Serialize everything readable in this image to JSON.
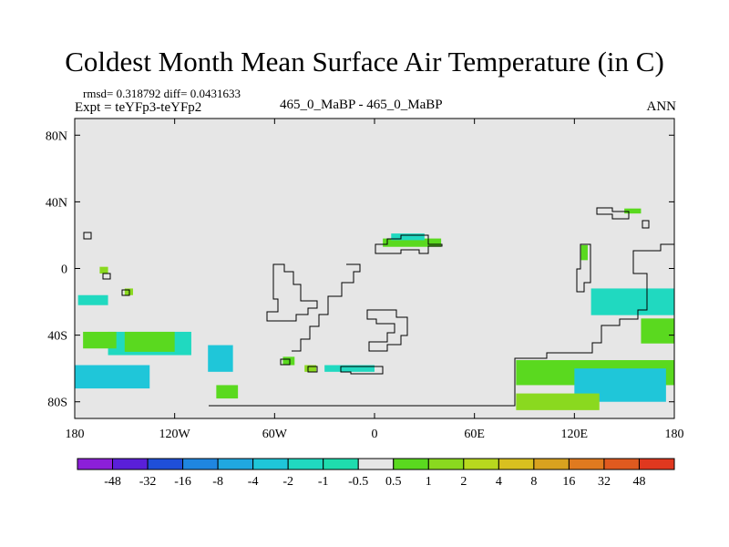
{
  "title": "Coldest Month Mean Surface Air Temperature (in C)",
  "subtitle_left_1": "rmsd= 0.318792 diff= 0.0431633",
  "subtitle_left_2": "Expt = teYFp3-teYFp2",
  "subtitle_center": "465_0_MaBP - 465_0_MaBP",
  "subtitle_right": "ANN",
  "chart_data": {
    "type": "heatmap",
    "projection": "cylindrical-equidistant",
    "xlim": [
      -180,
      180
    ],
    "ylim": [
      -90,
      90
    ],
    "x_ticks": [
      {
        "value": -180,
        "label": "180"
      },
      {
        "value": -120,
        "label": "120W"
      },
      {
        "value": -60,
        "label": "60W"
      },
      {
        "value": 0,
        "label": "0"
      },
      {
        "value": 60,
        "label": "60E"
      },
      {
        "value": 120,
        "label": "120E"
      },
      {
        "value": 180,
        "label": "180"
      }
    ],
    "y_ticks": [
      {
        "value": 80,
        "label": "80N"
      },
      {
        "value": 40,
        "label": "40N"
      },
      {
        "value": 0,
        "label": "0"
      },
      {
        "value": -40,
        "label": "40S"
      },
      {
        "value": -80,
        "label": "80S"
      }
    ],
    "background_color": "#e6e6e6",
    "colorbar": {
      "levels": [
        "-48",
        "-32",
        "-16",
        "-8",
        "-4",
        "-2",
        "-1",
        "-0.5",
        "0.5",
        "1",
        "2",
        "4",
        "8",
        "16",
        "32",
        "48"
      ],
      "colors": [
        "#8c1fd9",
        "#5a1fd9",
        "#1f4fd9",
        "#1f86e0",
        "#20a8e0",
        "#1fc6d9",
        "#20d9c0",
        "#1fdcae",
        "#e6e6e6",
        "#5ad91f",
        "#8ad91f",
        "#b8d81e",
        "#d9c01f",
        "#d9a21f",
        "#e07a1f",
        "#e05a1f",
        "#e0381f"
      ]
    },
    "regions": [
      {
        "value": -2,
        "lon": [
          -180,
          -135
        ],
        "lat": [
          -72,
          -58
        ]
      },
      {
        "value": -1,
        "lon": [
          -160,
          -110
        ],
        "lat": [
          -52,
          -38
        ]
      },
      {
        "value": 1,
        "lon": [
          -150,
          -120
        ],
        "lat": [
          -50,
          -38
        ]
      },
      {
        "value": -2,
        "lon": [
          -100,
          -85
        ],
        "lat": [
          -62,
          -46
        ]
      },
      {
        "value": 1,
        "lon": [
          -95,
          -82
        ],
        "lat": [
          -78,
          -70
        ]
      },
      {
        "value": -1,
        "lon": [
          -178,
          -160
        ],
        "lat": [
          -22,
          -16
        ]
      },
      {
        "value": 1,
        "lon": [
          -175,
          -155
        ],
        "lat": [
          -48,
          -38
        ]
      },
      {
        "value": 2,
        "lon": [
          -165,
          -160
        ],
        "lat": [
          -3,
          1
        ]
      },
      {
        "value": 2,
        "lon": [
          -150,
          -145
        ],
        "lat": [
          -16,
          -12
        ]
      },
      {
        "value": 2,
        "lon": [
          -42,
          -35
        ],
        "lat": [
          -62,
          -58
        ]
      },
      {
        "value": 1,
        "lon": [
          -55,
          -48
        ],
        "lat": [
          -58,
          -53
        ]
      },
      {
        "value": -1,
        "lon": [
          -30,
          0
        ],
        "lat": [
          -62,
          -58
        ]
      },
      {
        "value": 1,
        "lon": [
          5,
          40
        ],
        "lat": [
          13,
          18
        ]
      },
      {
        "value": -1,
        "lon": [
          10,
          30
        ],
        "lat": [
          17,
          21
        ]
      },
      {
        "value": 1,
        "lon": [
          160,
          180
        ],
        "lat": [
          -45,
          -30
        ]
      },
      {
        "value": 1,
        "lon": [
          85,
          180
        ],
        "lat": [
          -70,
          -55
        ]
      },
      {
        "value": -2,
        "lon": [
          120,
          175
        ],
        "lat": [
          -80,
          -60
        ]
      },
      {
        "value": 2,
        "lon": [
          85,
          135
        ],
        "lat": [
          -85,
          -75
        ]
      },
      {
        "value": -1,
        "lon": [
          130,
          180
        ],
        "lat": [
          -28,
          -12
        ]
      },
      {
        "value": 1,
        "lon": [
          124,
          128
        ],
        "lat": [
          5,
          14
        ]
      },
      {
        "value": 1,
        "lon": [
          150,
          160
        ],
        "lat": [
          33,
          36
        ]
      }
    ]
  }
}
